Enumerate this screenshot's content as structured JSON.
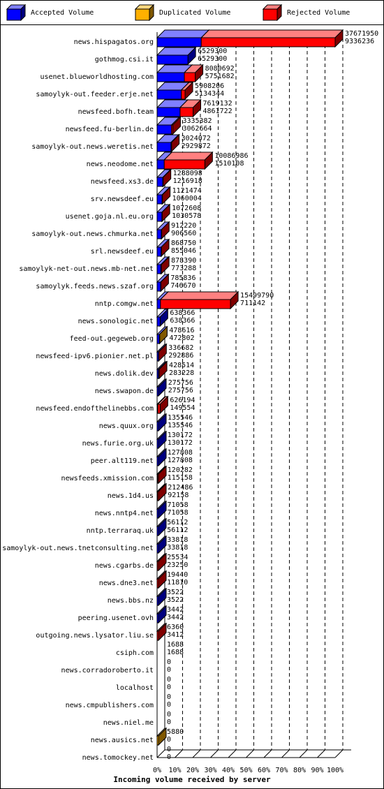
{
  "chart_data": {
    "type": "bar",
    "orientation": "horizontal",
    "stacking": "overlay",
    "xlabel": "Incoming volume received by server",
    "ylabel": "",
    "xlim": [
      0,
      100
    ],
    "x_ticks": [
      "0%",
      "10%",
      "20%",
      "30%",
      "40%",
      "50%",
      "60%",
      "70%",
      "80%",
      "90%",
      "100%"
    ],
    "legend": {
      "position": "top",
      "entries": [
        {
          "label": "Accepted Volume",
          "color": "#0000ff"
        },
        {
          "label": "Duplicated Volume",
          "color": "#ffb000"
        },
        {
          "label": "Rejected Volume",
          "color": "#ff0000"
        }
      ]
    },
    "grid": "vertical dashed",
    "categories": [
      "news.hispagatos.org",
      "gothmog.csi.it",
      "usenet.blueworldhosting.com",
      "samoylyk-out.feeder.erje.net",
      "newsfeed.bofh.team",
      "newsfeed.fu-berlin.de",
      "samoylyk-out.news.weretis.net",
      "news.neodome.net",
      "newsfeed.xs3.de",
      "srv.newsdeef.eu",
      "usenet.goja.nl.eu.org",
      "samoylyk-out.news.chmurka.net",
      "srl.newsdeef.eu",
      "samoylyk-net-out.news.mb-net.net",
      "samoylyk.feeds.news.szaf.org",
      "nntp.comgw.net",
      "news.sonologic.net",
      "feed-out.gegeweb.org",
      "newsfeed-ipv6.pionier.net.pl",
      "news.dolik.dev",
      "news.swapon.de",
      "newsfeed.endofthelinebbs.com",
      "news.quux.org",
      "news.furie.org.uk",
      "peer.alt119.net",
      "newsfeeds.xmission.com",
      "news.1d4.us",
      "news.nntp4.net",
      "nntp.terraraq.uk",
      "samoylyk-out.news.tnetconsulting.net",
      "news.cgarbs.de",
      "news.dne3.net",
      "news.bbs.nz",
      "peering.usenet.ovh",
      "outgoing.news.lysator.liu.se",
      "csiph.com",
      "news.corradoroberto.it",
      "localhost",
      "news.cmpublishers.com",
      "news.niel.me",
      "news.ausics.net",
      "news.tomockey.net"
    ],
    "total_labels": [
      "37671950",
      "6529300",
      "8080692",
      "5908206",
      "7619132",
      "3335382",
      "3024072",
      "10086986",
      "1288098",
      "1121474",
      "1072608",
      "912220",
      "868750",
      "878390",
      "785836",
      "15499790",
      "638366",
      "478616",
      "336682",
      "428514",
      "275756",
      "626194",
      "135546",
      "130172",
      "127808",
      "120282",
      "212486",
      "71058",
      "56112",
      "33818",
      "25534",
      "19440",
      "3522",
      "3442",
      "6360",
      "1688",
      "0",
      "0",
      "0",
      "0",
      "5880",
      "0"
    ],
    "accepted_labels": [
      "9336236",
      "6529300",
      "5751682",
      "5134344",
      "4861722",
      "3062664",
      "2929872",
      "1510108",
      "1216918",
      "1060004",
      "1030578",
      "906560",
      "855046",
      "773288",
      "746670",
      "711142",
      "638366",
      "472802",
      "292886",
      "283228",
      "275756",
      "149554",
      "135546",
      "130172",
      "127808",
      "115158",
      "92158",
      "71058",
      "56112",
      "33818",
      "23250",
      "11810",
      "3522",
      "3442",
      "3412",
      "1688",
      "0",
      "0",
      "0",
      "0",
      "0",
      "0"
    ],
    "series": [
      {
        "name": "Accepted Volume",
        "values": [
          24.8,
          17.3,
          15.3,
          13.6,
          12.9,
          8.1,
          7.8,
          4.0,
          3.2,
          2.8,
          2.7,
          2.4,
          2.3,
          2.1,
          2.0,
          1.9,
          1.7,
          1.3,
          0.8,
          0.8,
          0.7,
          0.4,
          0.4,
          0.3,
          0.3,
          0.3,
          0.2,
          0.2,
          0.1,
          0.1,
          0.1,
          0.03,
          0.01,
          0.01,
          0.01,
          0.0,
          0,
          0,
          0,
          0,
          0,
          0
        ]
      },
      {
        "name": "Duplicated Volume",
        "values": [
          0,
          0,
          0,
          0,
          0,
          0,
          0,
          0,
          0,
          0,
          0,
          0,
          0,
          0,
          0,
          0,
          0,
          0.02,
          0,
          0,
          0,
          0,
          0,
          0,
          0,
          0,
          0,
          0,
          0,
          0,
          0,
          0,
          0,
          0,
          0,
          0,
          0,
          0,
          0,
          0,
          0.02,
          0
        ]
      },
      {
        "name": "Rejected Volume",
        "values": [
          75.2,
          0,
          6.1,
          2.1,
          7.3,
          0.7,
          0.3,
          22.8,
          0.2,
          0.2,
          0.1,
          0.02,
          0.04,
          0.3,
          0.1,
          39.3,
          0,
          0,
          0.1,
          0.4,
          0,
          1.3,
          0,
          0,
          0,
          0.01,
          0.3,
          0,
          0,
          0,
          0.01,
          0.02,
          0,
          0,
          0.01,
          0,
          0,
          0,
          0,
          0,
          0,
          0
        ]
      }
    ]
  }
}
